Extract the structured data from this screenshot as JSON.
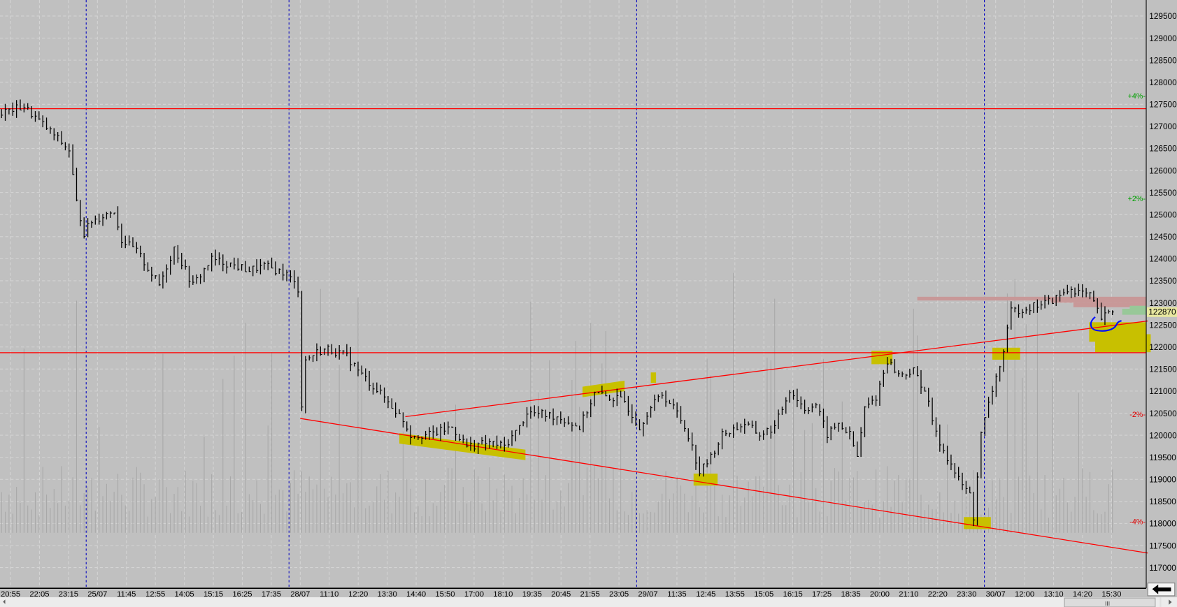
{
  "chart_data": {
    "type": "ohlc",
    "title": "",
    "ylim": [
      116800,
      129800
    ],
    "y_ticks": [
      129500,
      129000,
      128500,
      128000,
      127500,
      127000,
      126500,
      126000,
      125500,
      125000,
      124500,
      124000,
      123500,
      123000,
      122500,
      122000,
      121500,
      121000,
      120500,
      120000,
      119500,
      119000,
      118500,
      118000,
      117500,
      117000
    ],
    "x_ticks": [
      "20:55",
      "22:05",
      "23:15",
      "25/07",
      "11:45",
      "12:55",
      "14:05",
      "15:15",
      "16:25",
      "17:35",
      "28/07",
      "11:10",
      "12:20",
      "13:30",
      "14:40",
      "15:50",
      "17:00",
      "18:10",
      "19:35",
      "20:45",
      "21:55",
      "23:05",
      "29/07",
      "11:35",
      "12:45",
      "13:55",
      "15:05",
      "16:15",
      "17:25",
      "18:35",
      "20:00",
      "21:10",
      "22:20",
      "23:30",
      "30/07",
      "12:00",
      "13:10",
      "14:20",
      "15:30"
    ],
    "day_separators": [
      "25/07",
      "28/07",
      "29/07",
      "30/07"
    ],
    "price_path": [
      {
        "bar": 0,
        "price": 127310
      },
      {
        "bar": 6,
        "price": 127450
      },
      {
        "bar": 14,
        "price": 126800
      },
      {
        "bar": 18,
        "price": 126460
      },
      {
        "bar": 20,
        "price": 125270
      },
      {
        "bar": 22,
        "price": 124590
      },
      {
        "bar": 24,
        "price": 124850
      },
      {
        "bar": 30,
        "price": 125100
      },
      {
        "bar": 32,
        "price": 124420
      },
      {
        "bar": 36,
        "price": 124170
      },
      {
        "bar": 42,
        "price": 123400
      },
      {
        "bar": 46,
        "price": 124250
      },
      {
        "bar": 51,
        "price": 123400
      },
      {
        "bar": 56,
        "price": 123990
      },
      {
        "bar": 60,
        "price": 123900
      },
      {
        "bar": 66,
        "price": 123740
      },
      {
        "bar": 70,
        "price": 123830
      },
      {
        "bar": 76,
        "price": 123660
      },
      {
        "bar": 79,
        "price": 123320
      },
      {
        "bar": 80,
        "price": 120690
      },
      {
        "bar": 81,
        "price": 121700
      },
      {
        "bar": 84,
        "price": 121880
      },
      {
        "bar": 87,
        "price": 121960
      },
      {
        "bar": 92,
        "price": 121790
      },
      {
        "bar": 96,
        "price": 121370
      },
      {
        "bar": 102,
        "price": 120860
      },
      {
        "bar": 107,
        "price": 120350
      },
      {
        "bar": 109,
        "price": 120010
      },
      {
        "bar": 114,
        "price": 120010
      },
      {
        "bar": 120,
        "price": 120180
      },
      {
        "bar": 124,
        "price": 119750
      },
      {
        "bar": 130,
        "price": 119830
      },
      {
        "bar": 134,
        "price": 119750
      },
      {
        "bar": 138,
        "price": 120180
      },
      {
        "bar": 140,
        "price": 120520
      },
      {
        "bar": 148,
        "price": 120430
      },
      {
        "bar": 154,
        "price": 120180
      },
      {
        "bar": 158,
        "price": 120940
      },
      {
        "bar": 162,
        "price": 120860
      },
      {
        "bar": 166,
        "price": 120770
      },
      {
        "bar": 170,
        "price": 120180
      },
      {
        "bar": 172,
        "price": 120520
      },
      {
        "bar": 176,
        "price": 120940
      },
      {
        "bar": 180,
        "price": 120520
      },
      {
        "bar": 183,
        "price": 120010
      },
      {
        "bar": 186,
        "price": 119160
      },
      {
        "bar": 189,
        "price": 119500
      },
      {
        "bar": 192,
        "price": 120010
      },
      {
        "bar": 198,
        "price": 120260
      },
      {
        "bar": 202,
        "price": 120010
      },
      {
        "bar": 206,
        "price": 120180
      },
      {
        "bar": 210,
        "price": 121030
      },
      {
        "bar": 214,
        "price": 120600
      },
      {
        "bar": 217,
        "price": 120690
      },
      {
        "bar": 220,
        "price": 120010
      },
      {
        "bar": 223,
        "price": 120260
      },
      {
        "bar": 226,
        "price": 120010
      },
      {
        "bar": 228,
        "price": 119500
      },
      {
        "bar": 230,
        "price": 120600
      },
      {
        "bar": 233,
        "price": 120860
      },
      {
        "bar": 236,
        "price": 121700
      },
      {
        "bar": 239,
        "price": 121370
      },
      {
        "bar": 243,
        "price": 121450
      },
      {
        "bar": 246,
        "price": 121030
      },
      {
        "bar": 249,
        "price": 120010
      },
      {
        "bar": 252,
        "price": 119500
      },
      {
        "bar": 255,
        "price": 118990
      },
      {
        "bar": 258,
        "price": 118650
      },
      {
        "bar": 259,
        "price": 118140
      },
      {
        "bar": 261,
        "price": 120010
      },
      {
        "bar": 264,
        "price": 121030
      },
      {
        "bar": 267,
        "price": 121880
      },
      {
        "bar": 269,
        "price": 122810
      },
      {
        "bar": 274,
        "price": 122900
      },
      {
        "bar": 280,
        "price": 123060
      },
      {
        "bar": 285,
        "price": 123320
      },
      {
        "bar": 290,
        "price": 123150
      },
      {
        "bar": 293,
        "price": 122640
      },
      {
        "bar": 296,
        "price": 122810
      }
    ],
    "horizontal_lines": [
      127400,
      121870
    ],
    "trendlines": [
      {
        "from": {
          "bar": 80,
          "price": 120380
        },
        "to": {
          "bar": 305,
          "price": 117330
        }
      },
      {
        "from": {
          "bar": 108,
          "price": 120420
        },
        "to": {
          "bar": 305,
          "price": 122590
        }
      }
    ],
    "percent_markers": [
      {
        "label": "+4%-",
        "price": 127700,
        "color": "#00a000"
      },
      {
        "label": "+2%-",
        "price": 125370,
        "color": "#00a000"
      },
      {
        "label": "-2%-",
        "price": 120480,
        "color": "#e00000"
      },
      {
        "label": "-4%-",
        "price": 118050,
        "color": "#e00000"
      }
    ],
    "current_price": "122870",
    "grid": true,
    "colors": {
      "background": "#c0c0c0",
      "bars": "#000000",
      "levels": "#ff0000",
      "separators": "#0000c0",
      "highlight": "#c8c000",
      "volume": "#a8a8a8",
      "profile_sell": "#c89898",
      "profile_buy": "#98c898",
      "annotation": "#0010ff"
    }
  },
  "controls": {
    "scroll_right_label": "III"
  }
}
